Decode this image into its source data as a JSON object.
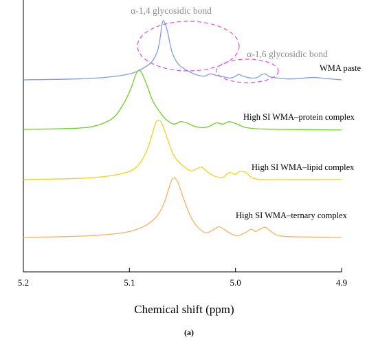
{
  "chart_data": {
    "type": "line",
    "title": "",
    "xlabel": "Chemical shift (ppm)",
    "ylabel": "",
    "xlim": [
      5.2,
      4.9
    ],
    "x_reversed": true,
    "x_ticks": [
      "5.2",
      "5.1",
      "5.0",
      "4.9"
    ],
    "y_axis": "stacked spectra, arbitrary intensity, no tick labels",
    "caption": "(a)",
    "series": [
      {
        "name": "WMA paste",
        "color": "#7c9cf0",
        "offset": 3,
        "points": [
          [
            5.2,
            0.0
          ],
          [
            5.15,
            0.02
          ],
          [
            5.12,
            0.06
          ],
          [
            5.1,
            0.13
          ],
          [
            5.09,
            0.22
          ],
          [
            5.08,
            0.37
          ],
          [
            5.075,
            0.55
          ],
          [
            5.072,
            0.78
          ],
          [
            5.069,
            1.25
          ],
          [
            5.067,
            1.27
          ],
          [
            5.064,
            1.05
          ],
          [
            5.06,
            0.62
          ],
          [
            5.055,
            0.38
          ],
          [
            5.05,
            0.27
          ],
          [
            5.04,
            0.14
          ],
          [
            5.03,
            0.08
          ],
          [
            5.024,
            0.13
          ],
          [
            5.02,
            0.11
          ],
          [
            5.012,
            0.07
          ],
          [
            5.005,
            0.04
          ],
          [
            5.0,
            0.08
          ],
          [
            4.997,
            0.12
          ],
          [
            4.994,
            0.09
          ],
          [
            4.988,
            0.05
          ],
          [
            4.982,
            0.04
          ],
          [
            4.978,
            0.07
          ],
          [
            4.975,
            0.12
          ],
          [
            4.972,
            0.13
          ],
          [
            4.968,
            0.07
          ],
          [
            4.96,
            0.04
          ],
          [
            4.95,
            0.02
          ],
          [
            4.94,
            0.03
          ],
          [
            4.93,
            0.05
          ],
          [
            4.924,
            0.05
          ],
          [
            4.915,
            0.03
          ],
          [
            4.905,
            0.01
          ],
          [
            4.9,
            0.0
          ]
        ]
      },
      {
        "name": "High SI WMA–protein complex",
        "color": "#6ed11e",
        "offset": 2,
        "points": [
          [
            5.2,
            0.0
          ],
          [
            5.15,
            0.02
          ],
          [
            5.13,
            0.07
          ],
          [
            5.115,
            0.2
          ],
          [
            5.105,
            0.45
          ],
          [
            5.098,
            0.72
          ],
          [
            5.094,
            0.93
          ],
          [
            5.091,
            1.0
          ],
          [
            5.088,
            0.94
          ],
          [
            5.083,
            0.72
          ],
          [
            5.078,
            0.48
          ],
          [
            5.07,
            0.26
          ],
          [
            5.065,
            0.16
          ],
          [
            5.058,
            0.09
          ],
          [
            5.052,
            0.13
          ],
          [
            5.046,
            0.11
          ],
          [
            5.04,
            0.06
          ],
          [
            5.032,
            0.03
          ],
          [
            5.025,
            0.05
          ],
          [
            5.018,
            0.11
          ],
          [
            5.012,
            0.09
          ],
          [
            5.006,
            0.13
          ],
          [
            5.0,
            0.1
          ],
          [
            4.995,
            0.06
          ],
          [
            4.99,
            0.03
          ],
          [
            4.98,
            0.01
          ],
          [
            4.96,
            0.0
          ],
          [
            4.9,
            -0.01
          ]
        ]
      },
      {
        "name": "High SI WMA–lipid complex",
        "color": "#f2d21a",
        "offset": 1,
        "points": [
          [
            5.2,
            0.0
          ],
          [
            5.15,
            0.02
          ],
          [
            5.12,
            0.06
          ],
          [
            5.1,
            0.14
          ],
          [
            5.09,
            0.28
          ],
          [
            5.083,
            0.52
          ],
          [
            5.078,
            0.8
          ],
          [
            5.075,
            0.97
          ],
          [
            5.072,
            1.0
          ],
          [
            5.069,
            0.93
          ],
          [
            5.064,
            0.68
          ],
          [
            5.058,
            0.4
          ],
          [
            5.05,
            0.24
          ],
          [
            5.042,
            0.15
          ],
          [
            5.036,
            0.19
          ],
          [
            5.032,
            0.21
          ],
          [
            5.027,
            0.14
          ],
          [
            5.02,
            0.06
          ],
          [
            5.012,
            0.04
          ],
          [
            5.006,
            0.12
          ],
          [
            5.0,
            0.09
          ],
          [
            4.996,
            0.14
          ],
          [
            4.99,
            0.12
          ],
          [
            4.986,
            0.05
          ],
          [
            4.98,
            0.01
          ],
          [
            4.97,
            0.0
          ],
          [
            4.9,
            0.0
          ]
        ]
      },
      {
        "name": "High SI WMA–ternary complex",
        "color": "#f7b160",
        "offset": 0,
        "points": [
          [
            5.2,
            0.0
          ],
          [
            5.15,
            0.02
          ],
          [
            5.12,
            0.05
          ],
          [
            5.1,
            0.1
          ],
          [
            5.085,
            0.2
          ],
          [
            5.075,
            0.34
          ],
          [
            5.068,
            0.55
          ],
          [
            5.063,
            0.82
          ],
          [
            5.06,
            0.98
          ],
          [
            5.057,
            1.0
          ],
          [
            5.054,
            0.92
          ],
          [
            5.049,
            0.66
          ],
          [
            5.043,
            0.38
          ],
          [
            5.036,
            0.18
          ],
          [
            5.028,
            0.08
          ],
          [
            5.02,
            0.14
          ],
          [
            5.016,
            0.18
          ],
          [
            5.012,
            0.15
          ],
          [
            5.005,
            0.07
          ],
          [
            4.998,
            0.03
          ],
          [
            4.99,
            0.09
          ],
          [
            4.985,
            0.14
          ],
          [
            4.981,
            0.1
          ],
          [
            4.977,
            0.14
          ],
          [
            4.972,
            0.17
          ],
          [
            4.968,
            0.12
          ],
          [
            4.962,
            0.05
          ],
          [
            4.955,
            0.02
          ],
          [
            4.94,
            0.01
          ],
          [
            4.9,
            0.0
          ]
        ]
      }
    ],
    "annotations": [
      {
        "text": "α-1,4 glycosidic bond",
        "target_ppm": 5.055
      },
      {
        "text": "α-1,6 glycosidic bond",
        "target_ppm": 4.985
      }
    ]
  }
}
